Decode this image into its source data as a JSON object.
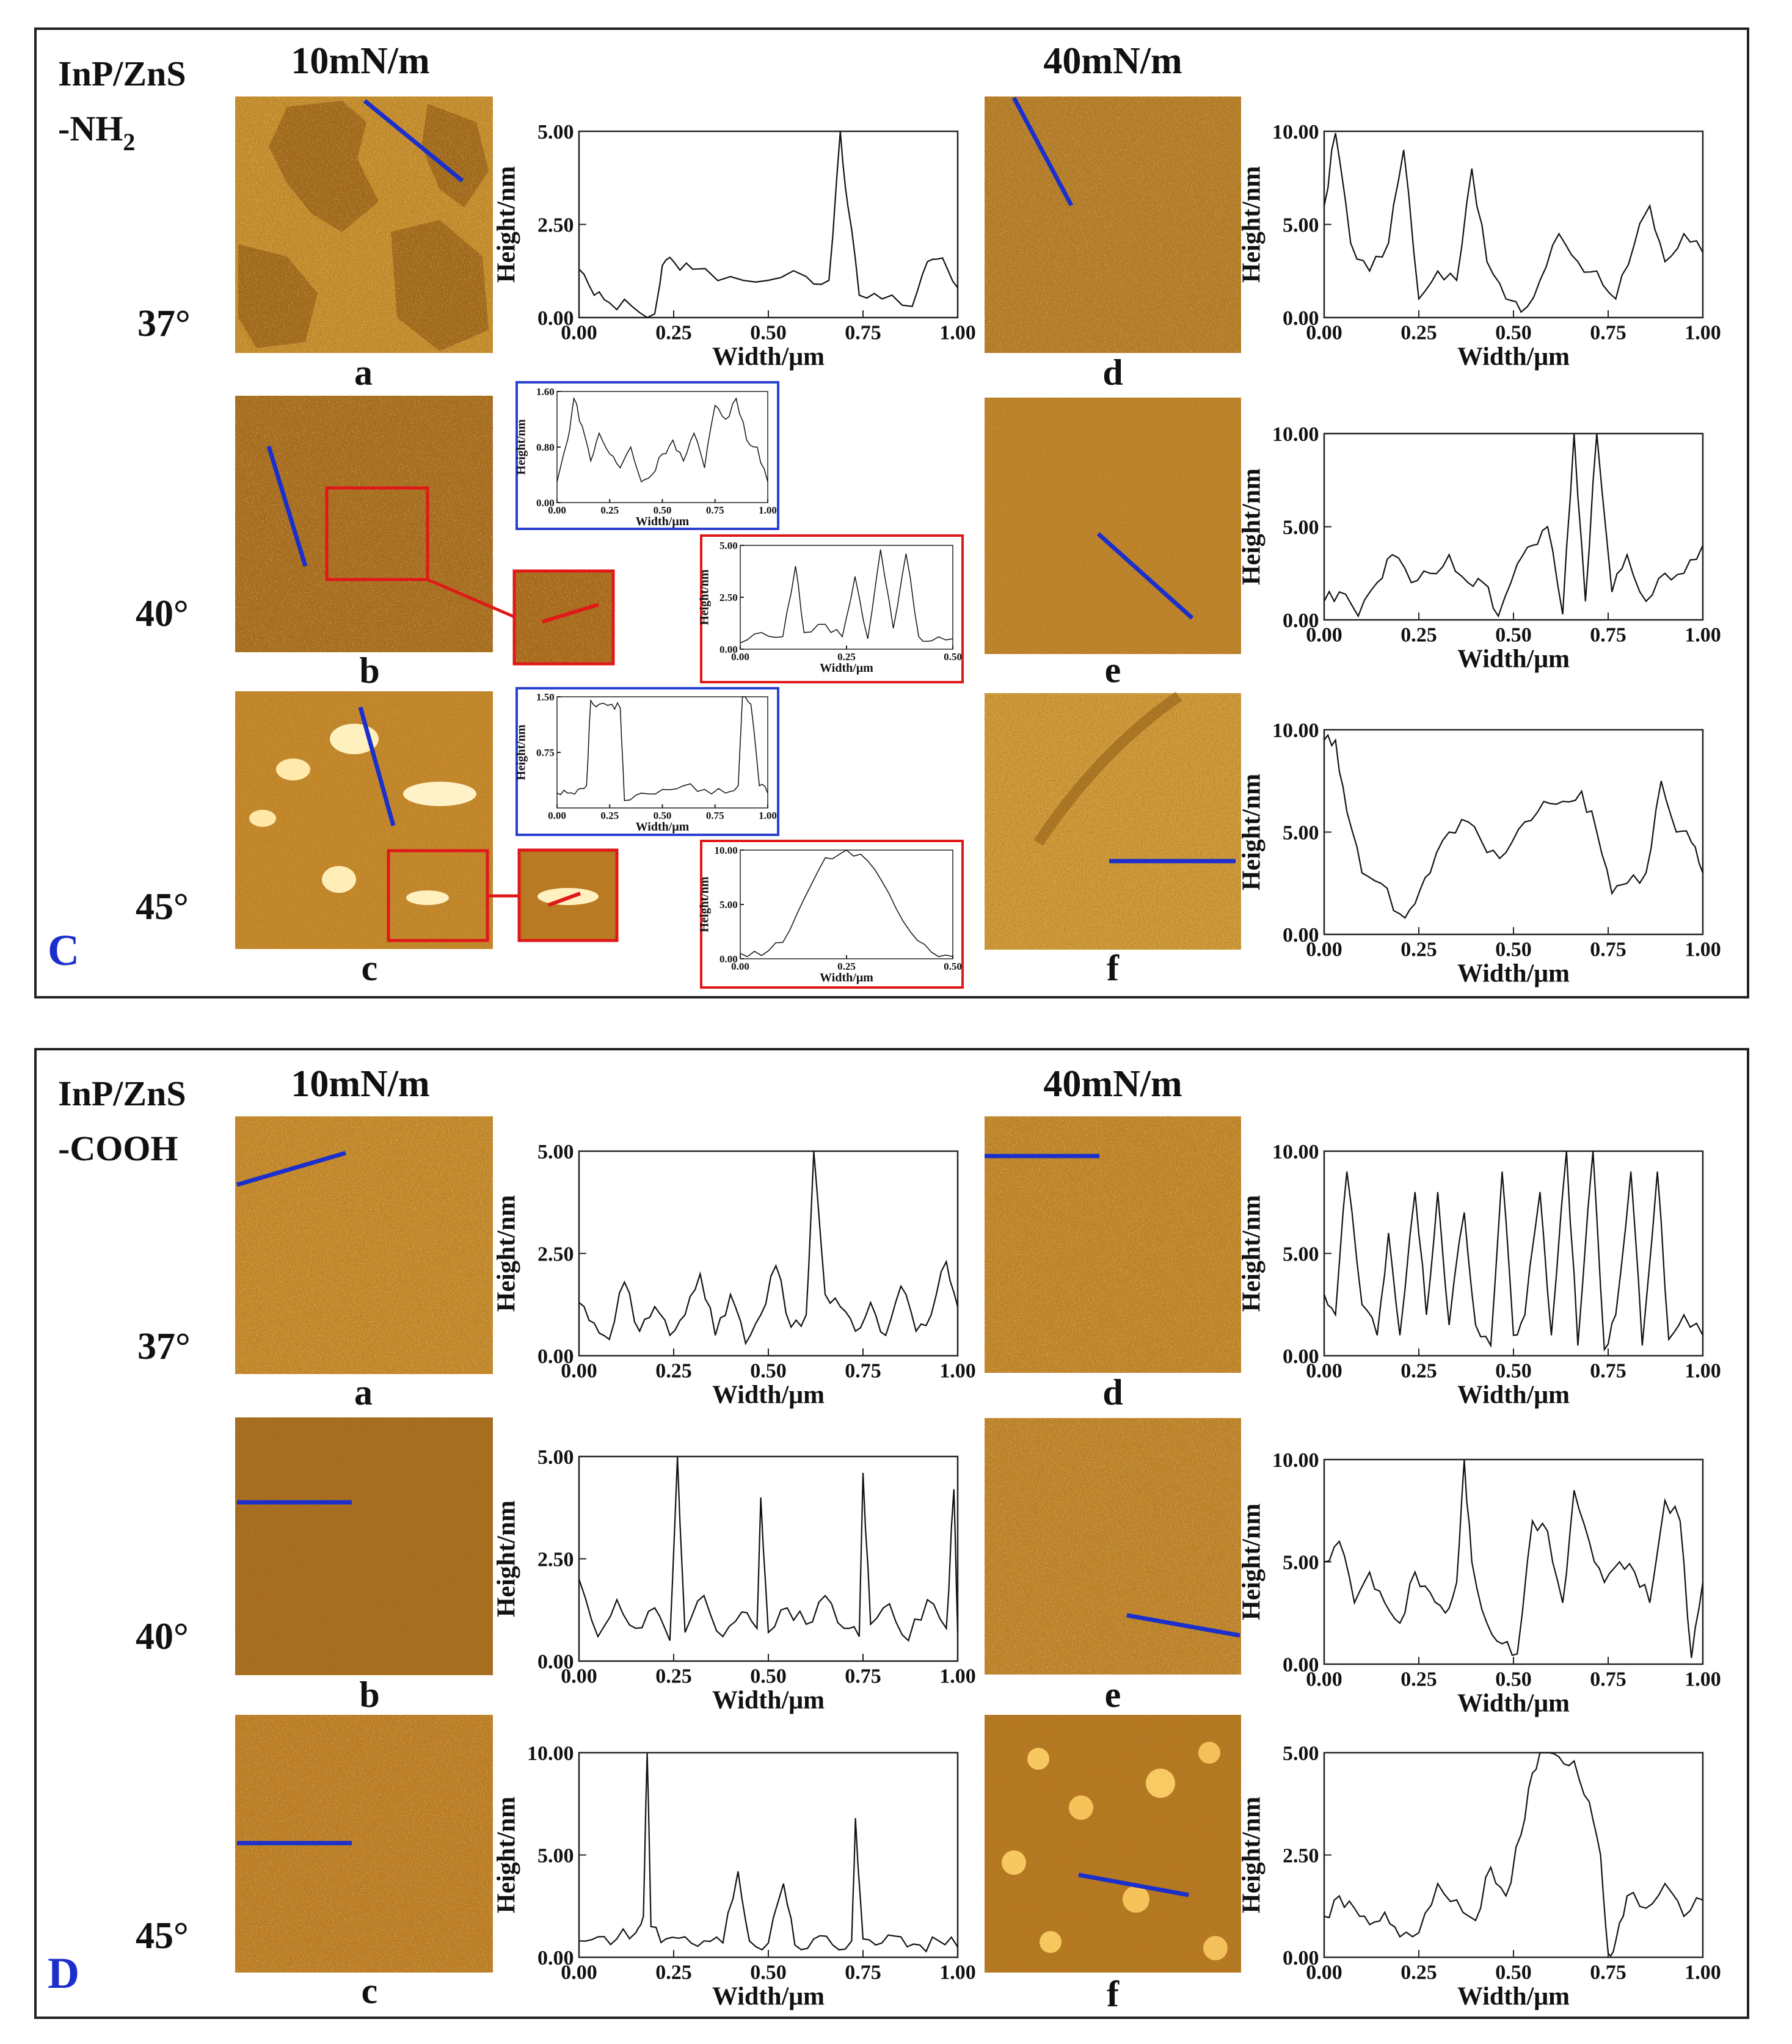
{
  "panels": [
    {
      "id": "C",
      "letter": "C",
      "sample_line1": "InP/ZnS",
      "sample_line2": "-NH",
      "sample_sub": "2",
      "pressures": [
        "10mN/m",
        "40mN/m"
      ],
      "angles": [
        "37°",
        "40°",
        "45°"
      ],
      "image_labels": [
        "a",
        "b",
        "c",
        "d",
        "e",
        "f"
      ],
      "colors": {
        "frame": "#222222",
        "scan_line": "#1a2fcc",
        "zoom_box": "#e01818",
        "inset_blue": "#2a3fd0",
        "afm_base": "#c58a25"
      }
    },
    {
      "id": "D",
      "letter": "D",
      "sample_line1": "InP/ZnS",
      "sample_line2": "-COOH",
      "sample_sub": "",
      "pressures": [
        "10mN/m",
        "40mN/m"
      ],
      "angles": [
        "37°",
        "40°",
        "45°"
      ],
      "image_labels": [
        "a",
        "b",
        "c",
        "d",
        "e",
        "f"
      ],
      "colors": {
        "frame": "#222222",
        "scan_line": "#1a2fcc",
        "afm_base": "#c58a25"
      }
    }
  ],
  "axis_text": {
    "xlabel": "Width/μm",
    "ylabel": "Height/nm"
  },
  "chart_data": [
    {
      "id": "C-a",
      "type": "line",
      "xlabel": "Width/μm",
      "ylabel": "Height/nm",
      "xlim": [
        0,
        1
      ],
      "ylim": [
        0,
        5
      ],
      "xticks": [
        "0.00",
        "0.25",
        "0.50",
        "0.75",
        "1.00"
      ],
      "yticks": [
        "0.00",
        "2.50",
        "5.00"
      ],
      "x": [
        0,
        0.04,
        0.08,
        0.14,
        0.2,
        0.22,
        0.25,
        0.3,
        0.4,
        0.5,
        0.6,
        0.66,
        0.69,
        0.71,
        0.74,
        0.8,
        0.88,
        0.92,
        0.96,
        1.0
      ],
      "y": [
        1.3,
        0.6,
        0.4,
        0.3,
        0.1,
        1.4,
        1.5,
        1.3,
        1.1,
        1.0,
        1.1,
        1.0,
        5.0,
        3.0,
        0.6,
        0.5,
        0.3,
        1.5,
        1.6,
        0.8
      ]
    },
    {
      "id": "C-b-inset",
      "type": "line",
      "xlabel": "Width/μm",
      "ylabel": "Height/nm",
      "xlim": [
        0,
        1
      ],
      "ylim": [
        0,
        1.6
      ],
      "xticks": [
        "0.00",
        "0.25",
        "0.50",
        "0.75",
        "1.00"
      ],
      "yticks": [
        "0.00",
        "0.80",
        "1.60"
      ],
      "x": [
        0,
        0.05,
        0.08,
        0.12,
        0.16,
        0.2,
        0.25,
        0.3,
        0.35,
        0.4,
        0.45,
        0.5,
        0.55,
        0.6,
        0.65,
        0.7,
        0.75,
        0.8,
        0.85,
        0.9,
        0.95,
        1.0
      ],
      "y": [
        0.3,
        0.9,
        1.5,
        1.1,
        0.6,
        1.0,
        0.7,
        0.5,
        0.8,
        0.3,
        0.4,
        0.7,
        0.9,
        0.6,
        1.0,
        0.5,
        1.4,
        1.2,
        1.5,
        0.9,
        0.8,
        0.3
      ]
    },
    {
      "id": "C-b-zoom",
      "type": "line",
      "xlabel": "Width/μm",
      "ylabel": "Height/nm",
      "xlim": [
        0,
        0.5
      ],
      "ylim": [
        0,
        5
      ],
      "xticks": [
        "0.00",
        "0.25",
        "0.50"
      ],
      "yticks": [
        "0.00",
        "2.50",
        "5.00"
      ],
      "x": [
        0,
        0.05,
        0.1,
        0.13,
        0.15,
        0.2,
        0.24,
        0.27,
        0.3,
        0.33,
        0.36,
        0.39,
        0.42,
        0.45,
        0.5
      ],
      "y": [
        0.3,
        0.8,
        0.6,
        4.0,
        0.8,
        1.2,
        0.6,
        3.5,
        0.5,
        4.8,
        1.0,
        4.6,
        0.6,
        0.4,
        0.5
      ]
    },
    {
      "id": "C-c-inset",
      "type": "line",
      "xlabel": "Width/μm",
      "ylabel": "Height/nm",
      "xlim": [
        0,
        1
      ],
      "ylim": [
        0,
        1.5
      ],
      "xticks": [
        "0.00",
        "0.25",
        "0.50",
        "0.75",
        "1.00"
      ],
      "yticks": [
        "0.75",
        "1.50"
      ],
      "x": [
        0,
        0.05,
        0.1,
        0.14,
        0.16,
        0.2,
        0.26,
        0.3,
        0.32,
        0.4,
        0.5,
        0.6,
        0.7,
        0.8,
        0.86,
        0.88,
        0.92,
        0.96,
        1.0
      ],
      "y": [
        0.2,
        0.2,
        0.25,
        0.3,
        1.45,
        1.4,
        1.4,
        1.35,
        0.1,
        0.2,
        0.25,
        0.3,
        0.25,
        0.2,
        0.3,
        1.5,
        1.4,
        0.3,
        0.2
      ]
    },
    {
      "id": "C-c-zoom",
      "type": "line",
      "xlabel": "Width/μm",
      "ylabel": "Height/nm",
      "xlim": [
        0,
        0.5
      ],
      "ylim": [
        0,
        10
      ],
      "xticks": [
        "0.00",
        "0.25",
        "0.50"
      ],
      "yticks": [
        "0.00",
        "5.00",
        "10.00"
      ],
      "x": [
        0,
        0.05,
        0.1,
        0.15,
        0.2,
        0.25,
        0.3,
        0.35,
        0.4,
        0.45,
        0.5
      ],
      "y": [
        0.5,
        0.3,
        1.5,
        5.5,
        9.3,
        10.0,
        9.0,
        6.0,
        2.5,
        0.6,
        0.2
      ]
    },
    {
      "id": "C-d",
      "type": "line",
      "xlabel": "Width/μm",
      "ylabel": "Height/nm",
      "xlim": [
        0,
        1
      ],
      "ylim": [
        0,
        10
      ],
      "xticks": [
        "0.00",
        "0.25",
        "0.50",
        "0.75",
        "1.00"
      ],
      "yticks": [
        "0.00",
        "5.00",
        "10.00"
      ],
      "x": [
        0,
        0.03,
        0.07,
        0.12,
        0.17,
        0.21,
        0.25,
        0.3,
        0.35,
        0.39,
        0.43,
        0.48,
        0.52,
        0.57,
        0.62,
        0.67,
        0.72,
        0.77,
        0.82,
        0.86,
        0.9,
        0.95,
        1.0
      ],
      "y": [
        6.0,
        9.9,
        4.0,
        2.5,
        4.0,
        9.0,
        1.0,
        2.5,
        2.0,
        8.0,
        3.0,
        1.0,
        0.3,
        2.0,
        4.5,
        3.0,
        2.5,
        1.0,
        4.0,
        6.0,
        3.0,
        4.5,
        3.5
      ]
    },
    {
      "id": "C-e",
      "type": "line",
      "xlabel": "Width/μm",
      "ylabel": "Height/nm",
      "xlim": [
        0,
        1
      ],
      "ylim": [
        0,
        10
      ],
      "xticks": [
        "0.00",
        "0.25",
        "0.50",
        "0.75",
        "1.00"
      ],
      "yticks": [
        "0.00",
        "5.00",
        "10.00"
      ],
      "x": [
        0,
        0.04,
        0.09,
        0.14,
        0.18,
        0.23,
        0.28,
        0.33,
        0.38,
        0.42,
        0.46,
        0.51,
        0.55,
        0.59,
        0.63,
        0.66,
        0.69,
        0.72,
        0.76,
        0.8,
        0.85,
        0.9,
        0.95,
        1.0
      ],
      "y": [
        1.0,
        1.5,
        0.2,
        2.0,
        3.5,
        2.0,
        2.5,
        3.5,
        2.0,
        2.0,
        0.2,
        3.0,
        4.0,
        5.0,
        0.3,
        10.0,
        1.0,
        10.0,
        1.5,
        3.5,
        1.0,
        2.5,
        2.5,
        4.0
      ]
    },
    {
      "id": "C-f",
      "type": "line",
      "xlabel": "Width/μm",
      "ylabel": "Height/nm",
      "xlim": [
        0,
        1
      ],
      "ylim": [
        0,
        10
      ],
      "xticks": [
        "0.00",
        "0.25",
        "0.50",
        "0.75",
        "1.00"
      ],
      "yticks": [
        "0.00",
        "5.00",
        "10.00"
      ],
      "x": [
        0,
        0.03,
        0.06,
        0.1,
        0.15,
        0.2,
        0.24,
        0.28,
        0.33,
        0.38,
        0.43,
        0.48,
        0.53,
        0.58,
        0.63,
        0.68,
        0.72,
        0.76,
        0.8,
        0.85,
        0.89,
        0.93,
        0.97,
        1.0
      ],
      "y": [
        9.5,
        9.5,
        6.0,
        3.0,
        2.5,
        1.0,
        1.5,
        3.0,
        5.0,
        5.5,
        4.0,
        4.0,
        5.5,
        6.5,
        6.5,
        7.0,
        5.0,
        2.0,
        2.5,
        3.0,
        7.5,
        5.0,
        4.5,
        3.0
      ]
    },
    {
      "id": "D-a",
      "type": "line",
      "xlabel": "Width/μm",
      "ylabel": "Height/nm",
      "xlim": [
        0,
        1
      ],
      "ylim": [
        0,
        5
      ],
      "xticks": [
        "0.00",
        "0.25",
        "0.50",
        "0.75",
        "1.00"
      ],
      "yticks": [
        "0.00",
        "2.50",
        "5.00"
      ],
      "x": [
        0,
        0.04,
        0.08,
        0.12,
        0.16,
        0.2,
        0.24,
        0.28,
        0.32,
        0.36,
        0.4,
        0.44,
        0.48,
        0.52,
        0.56,
        0.6,
        0.62,
        0.65,
        0.69,
        0.73,
        0.77,
        0.81,
        0.85,
        0.89,
        0.93,
        0.97,
        1.0
      ],
      "y": [
        1.3,
        0.8,
        0.4,
        1.8,
        0.6,
        1.2,
        0.5,
        1.0,
        2.0,
        0.5,
        1.5,
        0.3,
        1.0,
        2.2,
        0.7,
        1.0,
        5.0,
        1.5,
        1.2,
        0.6,
        1.3,
        0.5,
        1.7,
        0.6,
        1.0,
        2.3,
        1.2
      ]
    },
    {
      "id": "D-b",
      "type": "line",
      "xlabel": "Width/μm",
      "ylabel": "Height/nm",
      "xlim": [
        0,
        1
      ],
      "ylim": [
        0,
        5
      ],
      "xticks": [
        "0.00",
        "0.25",
        "0.50",
        "0.75",
        "1.00"
      ],
      "yticks": [
        "0.00",
        "2.50",
        "5.00"
      ],
      "x": [
        0,
        0.05,
        0.1,
        0.15,
        0.2,
        0.24,
        0.26,
        0.28,
        0.33,
        0.38,
        0.43,
        0.47,
        0.48,
        0.5,
        0.55,
        0.6,
        0.65,
        0.7,
        0.74,
        0.75,
        0.77,
        0.82,
        0.87,
        0.92,
        0.97,
        0.99,
        1.0
      ],
      "y": [
        2.0,
        0.6,
        1.5,
        0.8,
        1.3,
        0.5,
        5.0,
        0.7,
        1.6,
        0.6,
        1.2,
        0.8,
        4.0,
        0.7,
        1.3,
        0.9,
        1.6,
        0.8,
        0.6,
        4.6,
        0.9,
        1.4,
        0.5,
        1.5,
        0.8,
        4.2,
        0.7
      ]
    },
    {
      "id": "D-c",
      "type": "line",
      "xlabel": "Width/μm",
      "ylabel": "Height/nm",
      "xlim": [
        0,
        1
      ],
      "ylim": [
        0,
        10
      ],
      "xticks": [
        "0.00",
        "0.25",
        "0.50",
        "0.75",
        "1.00"
      ],
      "yticks": [
        "0.00",
        "5.00",
        "10.00"
      ],
      "x": [
        0,
        0.05,
        0.1,
        0.15,
        0.17,
        0.18,
        0.19,
        0.23,
        0.28,
        0.33,
        0.38,
        0.42,
        0.45,
        0.5,
        0.54,
        0.57,
        0.62,
        0.67,
        0.72,
        0.73,
        0.75,
        0.8,
        0.85,
        0.9,
        0.95,
        1.0
      ],
      "y": [
        0.8,
        1.0,
        0.9,
        1.2,
        2.0,
        10.0,
        1.5,
        0.9,
        1.0,
        0.8,
        0.7,
        4.2,
        0.8,
        0.7,
        3.6,
        0.6,
        0.9,
        0.6,
        0.8,
        6.8,
        0.9,
        0.7,
        1.0,
        0.6,
        0.8,
        0.5
      ]
    },
    {
      "id": "D-d",
      "type": "line",
      "xlabel": "Width/μm",
      "ylabel": "Height/nm",
      "xlim": [
        0,
        1
      ],
      "ylim": [
        0,
        10
      ],
      "xticks": [
        "0.00",
        "0.25",
        "0.50",
        "0.75",
        "1.00"
      ],
      "yticks": [
        "0.00",
        "5.00",
        "10.00"
      ],
      "x": [
        0,
        0.03,
        0.06,
        0.1,
        0.14,
        0.17,
        0.2,
        0.24,
        0.27,
        0.3,
        0.33,
        0.37,
        0.4,
        0.44,
        0.47,
        0.5,
        0.53,
        0.57,
        0.6,
        0.64,
        0.67,
        0.71,
        0.74,
        0.77,
        0.81,
        0.84,
        0.88,
        0.91,
        0.95,
        1.0
      ],
      "y": [
        3.0,
        2.0,
        9.0,
        2.5,
        1.0,
        6.0,
        1.0,
        8.0,
        2.0,
        8.0,
        1.5,
        7.0,
        1.5,
        0.5,
        9.0,
        1.0,
        2.0,
        8.0,
        1.0,
        10.0,
        0.5,
        10.0,
        0.3,
        2.0,
        9.0,
        0.5,
        9.0,
        0.8,
        2.0,
        1.0
      ]
    },
    {
      "id": "D-e",
      "type": "line",
      "xlabel": "Width/μm",
      "ylabel": "Height/nm",
      "xlim": [
        0,
        1
      ],
      "ylim": [
        0,
        10
      ],
      "xticks": [
        "0.00",
        "0.25",
        "0.50",
        "0.75",
        "1.00"
      ],
      "yticks": [
        "0.00",
        "5.00",
        "10.00"
      ],
      "x": [
        0,
        0.04,
        0.08,
        0.12,
        0.16,
        0.2,
        0.24,
        0.28,
        0.32,
        0.35,
        0.37,
        0.39,
        0.43,
        0.47,
        0.51,
        0.55,
        0.59,
        0.63,
        0.66,
        0.7,
        0.74,
        0.78,
        0.82,
        0.86,
        0.9,
        0.94,
        0.97,
        1.0
      ],
      "y": [
        5.0,
        6.0,
        3.0,
        4.5,
        3.0,
        2.0,
        4.5,
        3.5,
        2.5,
        4.0,
        10.0,
        5.0,
        2.0,
        1.0,
        0.5,
        7.0,
        6.5,
        3.0,
        8.5,
        6.0,
        4.0,
        5.0,
        4.5,
        3.0,
        8.0,
        7.0,
        0.3,
        4.0
      ]
    },
    {
      "id": "D-f",
      "type": "line",
      "xlabel": "Width/μm",
      "ylabel": "Height/nm",
      "xlim": [
        0,
        1
      ],
      "ylim": [
        0,
        5
      ],
      "xticks": [
        "0.00",
        "0.25",
        "0.50",
        "0.75",
        "1.00"
      ],
      "yticks": [
        "0.00",
        "2.50",
        "5.00"
      ],
      "x": [
        0,
        0.04,
        0.08,
        0.12,
        0.16,
        0.2,
        0.25,
        0.3,
        0.35,
        0.4,
        0.44,
        0.48,
        0.52,
        0.55,
        0.58,
        0.62,
        0.66,
        0.7,
        0.73,
        0.75,
        0.77,
        0.8,
        0.85,
        0.9,
        0.95,
        1.0
      ],
      "y": [
        1.0,
        1.5,
        1.2,
        0.8,
        1.1,
        0.5,
        0.6,
        1.8,
        1.4,
        0.9,
        2.2,
        1.5,
        3.0,
        4.5,
        5.0,
        4.9,
        4.8,
        3.8,
        2.5,
        0.1,
        0.4,
        1.5,
        1.2,
        1.8,
        1.0,
        1.4
      ]
    }
  ]
}
